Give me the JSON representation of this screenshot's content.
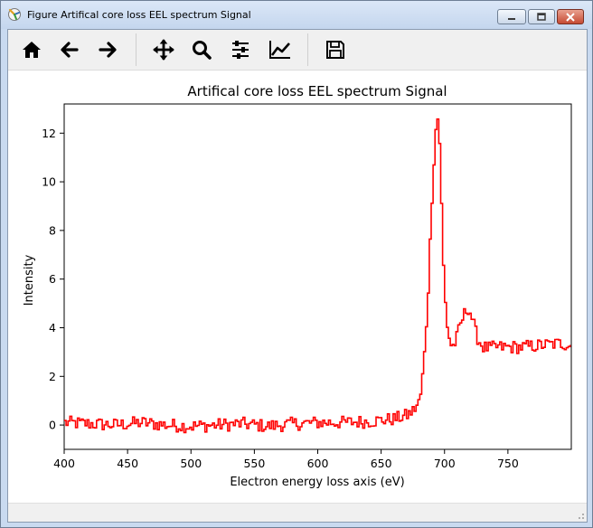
{
  "window": {
    "title": "Figure Artifical core loss EEL spectrum Signal",
    "icon": "matplotlib-figure-icon",
    "controls": [
      "minimize-icon",
      "maximize-icon",
      "close-icon"
    ]
  },
  "toolbar": {
    "buttons": [
      {
        "name": "home",
        "icon": "home-icon"
      },
      {
        "name": "back",
        "icon": "arrow-left-icon"
      },
      {
        "name": "forward",
        "icon": "arrow-right-icon"
      },
      {
        "name": "pan",
        "icon": "move-icon"
      },
      {
        "name": "zoom",
        "icon": "magnifier-icon"
      },
      {
        "name": "subplots",
        "icon": "sliders-icon"
      },
      {
        "name": "axes",
        "icon": "line-chart-icon"
      },
      {
        "name": "save",
        "icon": "floppy-disk-icon"
      }
    ]
  },
  "chart_data": {
    "type": "line",
    "title": "Artifical core loss EEL spectrum Signal",
    "xlabel": "Electron energy loss axis (eV)",
    "ylabel": "Intensity",
    "xlim": [
      400,
      800
    ],
    "ylim": [
      -1,
      13.2
    ],
    "xticks": [
      400,
      450,
      500,
      550,
      600,
      650,
      700,
      750
    ],
    "yticks": [
      0,
      2,
      4,
      6,
      8,
      10,
      12
    ],
    "grid": false,
    "color": "#ff0000",
    "drawstyle": "steps-mid",
    "series": [
      {
        "x": [
          400,
          420,
          440,
          460,
          480,
          500,
          520,
          540,
          560,
          580,
          600,
          620,
          640,
          660,
          670,
          675,
          680,
          683,
          686,
          688,
          690,
          692,
          693,
          694,
          695,
          696,
          697,
          698,
          700,
          702,
          705,
          708,
          710,
          713,
          716,
          718,
          720,
          722,
          724,
          726,
          730,
          735,
          740,
          750,
          760,
          770,
          780,
          790,
          800
        ],
        "values": [
          0.1,
          0.05,
          0.0,
          0.1,
          0.0,
          -0.05,
          0.0,
          0.05,
          -0.05,
          0.05,
          0.1,
          0.1,
          0.15,
          0.25,
          0.4,
          0.6,
          1.0,
          2.5,
          5.0,
          7.5,
          10.0,
          11.8,
          12.5,
          12.6,
          12.3,
          11.0,
          9.0,
          7.0,
          5.0,
          3.8,
          3.2,
          3.4,
          3.8,
          4.3,
          4.7,
          4.8,
          4.6,
          4.2,
          3.8,
          3.5,
          3.2,
          3.15,
          3.2,
          3.2,
          3.2,
          3.25,
          3.3,
          3.35,
          3.3
        ]
      }
    ]
  }
}
